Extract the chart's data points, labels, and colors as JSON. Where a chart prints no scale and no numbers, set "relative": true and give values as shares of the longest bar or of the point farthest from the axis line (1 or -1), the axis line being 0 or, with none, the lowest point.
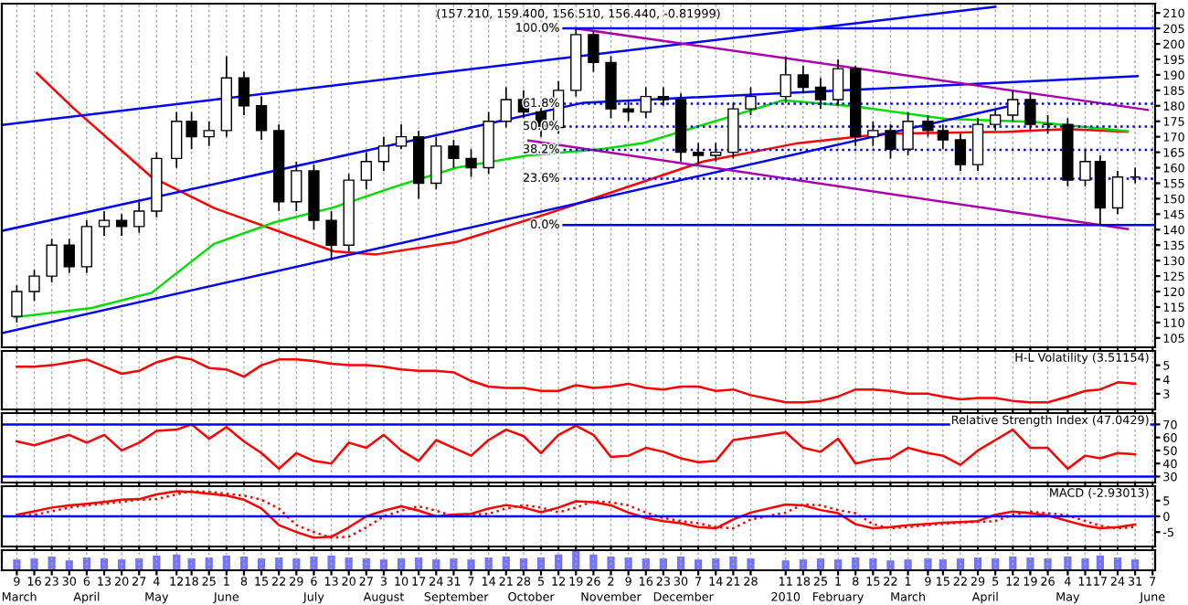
{
  "chart_data": [
    {
      "type": "candlestick",
      "title": "(157.210, 159.400, 156.510, 156.440, -0.81999)",
      "color": "#000000",
      "xlim": [
        "2009-03-03",
        "2010-06-08"
      ],
      "ylim": [
        102,
        213
      ],
      "yticks": [
        105,
        110,
        115,
        120,
        125,
        130,
        135,
        140,
        145,
        150,
        155,
        160,
        165,
        170,
        175,
        180,
        185,
        190,
        195,
        200,
        205,
        210
      ],
      "grid": "x",
      "tick_labels": "y",
      "legend": false,
      "x": [
        "2009-03-09",
        "2009-03-16",
        "2009-03-23",
        "2009-03-30",
        "2009-04-06",
        "2009-04-13",
        "2009-04-20",
        "2009-04-27",
        "2009-05-04",
        "2009-05-12",
        "2009-05-18",
        "2009-05-25",
        "2009-06-01",
        "2009-06-08",
        "2009-06-15",
        "2009-06-22",
        "2009-06-29",
        "2009-07-06",
        "2009-07-13",
        "2009-07-20",
        "2009-07-27",
        "2009-08-03",
        "2009-08-10",
        "2009-08-17",
        "2009-08-24",
        "2009-08-31",
        "2009-09-07",
        "2009-09-14",
        "2009-09-21",
        "2009-09-28",
        "2009-10-05",
        "2009-10-12",
        "2009-10-19",
        "2009-10-26",
        "2009-11-02",
        "2009-11-09",
        "2009-11-16",
        "2009-11-23",
        "2009-11-30",
        "2009-12-07",
        "2009-12-14",
        "2009-12-21",
        "2009-12-28",
        "2010-01-11",
        "2010-01-18",
        "2010-01-25",
        "2010-02-01",
        "2010-02-08",
        "2010-02-15",
        "2010-02-22",
        "2010-03-01",
        "2010-03-09",
        "2010-03-15",
        "2010-03-22",
        "2010-03-29",
        "2010-04-05",
        "2010-04-12",
        "2010-04-19",
        "2010-04-26",
        "2010-05-04",
        "2010-05-11",
        "2010-05-17",
        "2010-05-24",
        "2010-05-31"
      ],
      "ohlc": [
        [
          112,
          122,
          110,
          120
        ],
        [
          120,
          127,
          117,
          125
        ],
        [
          125,
          137,
          123,
          135
        ],
        [
          135,
          137,
          126,
          128
        ],
        [
          128,
          143,
          126,
          141
        ],
        [
          141,
          146,
          138,
          143
        ],
        [
          143,
          145,
          138,
          141
        ],
        [
          141,
          149,
          139,
          146
        ],
        [
          146,
          165,
          144,
          163
        ],
        [
          163,
          178,
          160,
          175
        ],
        [
          175,
          178,
          166,
          170
        ],
        [
          170,
          175,
          167,
          172
        ],
        [
          172,
          196,
          170,
          189
        ],
        [
          189,
          191,
          177,
          180
        ],
        [
          180,
          183,
          169,
          172
        ],
        [
          172,
          174,
          146,
          149
        ],
        [
          149,
          162,
          146,
          159
        ],
        [
          159,
          161,
          140,
          143
        ],
        [
          143,
          146,
          130,
          135
        ],
        [
          135,
          158,
          133,
          156
        ],
        [
          156,
          165,
          153,
          162
        ],
        [
          162,
          170,
          159,
          167
        ],
        [
          167,
          174,
          166,
          170
        ],
        [
          170,
          172,
          150,
          155
        ],
        [
          155,
          170,
          153,
          167
        ],
        [
          167,
          169,
          160,
          163
        ],
        [
          163,
          166,
          157,
          160
        ],
        [
          160,
          178,
          158,
          175
        ],
        [
          175,
          186,
          173,
          182
        ],
        [
          182,
          185,
          176,
          178
        ],
        [
          178,
          180,
          170,
          173
        ],
        [
          173,
          188,
          171,
          185
        ],
        [
          185,
          205,
          183,
          203
        ],
        [
          203,
          204,
          191,
          194
        ],
        [
          194,
          196,
          176,
          179
        ],
        [
          179,
          182,
          175,
          178
        ],
        [
          178,
          186,
          176,
          183
        ],
        [
          183,
          186,
          180,
          182
        ],
        [
          182,
          184,
          162,
          165
        ],
        [
          165,
          168,
          161,
          164
        ],
        [
          164,
          168,
          162,
          165
        ],
        [
          165,
          181,
          163,
          179
        ],
        [
          179,
          186,
          177,
          183
        ],
        [
          183,
          196,
          181,
          190
        ],
        [
          190,
          193,
          184,
          186
        ],
        [
          186,
          189,
          179,
          182
        ],
        [
          182,
          195,
          180,
          192
        ],
        [
          192,
          193,
          167,
          170
        ],
        [
          170,
          175,
          167,
          172
        ],
        [
          172,
          174,
          163,
          166
        ],
        [
          166,
          178,
          164,
          175
        ],
        [
          175,
          177,
          170,
          172
        ],
        [
          172,
          174,
          166,
          169
        ],
        [
          169,
          171,
          159,
          161
        ],
        [
          161,
          176,
          159,
          174
        ],
        [
          174,
          179,
          172,
          177
        ],
        [
          177,
          185,
          175,
          182
        ],
        [
          182,
          184,
          172,
          174
        ],
        [
          174,
          177,
          171,
          174
        ],
        [
          174,
          176,
          154,
          156
        ],
        [
          156,
          166,
          154,
          162
        ],
        [
          162,
          164,
          141.5,
          147
        ],
        [
          147,
          159,
          145,
          157
        ],
        [
          157,
          160,
          155,
          157
        ]
      ],
      "series": [
        {
          "type": "line",
          "color": "#ff0000",
          "x": [
            "2009-03-17",
            "2009-04-01",
            "2009-05-02",
            "2009-05-27",
            "2009-06-20",
            "2009-07-14",
            "2009-07-31",
            "2009-09-01",
            "2009-10-07",
            "2009-10-22",
            "2009-12-09",
            "2010-01-15",
            "2010-02-20",
            "2010-04-09",
            "2010-05-04",
            "2010-05-28"
          ],
          "values": [
            190.6,
            179,
            157,
            147,
            140,
            133,
            132,
            136,
            145,
            149,
            162,
            167.8,
            171,
            171.6,
            172.5,
            171.6
          ]
        },
        {
          "type": "line",
          "color": "#00dd00",
          "x": [
            "2009-03-08",
            "2009-04-08",
            "2009-05-02",
            "2009-05-27",
            "2009-06-20",
            "2009-07-14",
            "2009-08-08",
            "2009-09-01",
            "2009-09-30",
            "2009-10-29",
            "2009-11-15",
            "2009-12-21",
            "2010-01-10",
            "2010-02-08",
            "2010-03-16",
            "2010-04-21",
            "2010-05-28"
          ],
          "values": [
            111.7,
            114.7,
            119.6,
            135.4,
            142.3,
            147.2,
            154,
            160,
            164,
            166,
            168,
            176.8,
            181.8,
            179.8,
            175.8,
            174.8,
            171.8
          ]
        },
        {
          "type": "line",
          "color": "#0000ff",
          "x": [
            "2009-03-03",
            "2010-04-05"
          ],
          "values": [
            173.8,
            212
          ]
        },
        {
          "type": "line",
          "color": "#0000ff",
          "x": [
            "2009-03-03",
            "2009-10-22",
            "2010-06-01"
          ],
          "values": [
            139.6,
            181,
            189.6
          ]
        },
        {
          "type": "line",
          "color": "#0000ff",
          "x": [
            "2009-03-03",
            "2010-04-10"
          ],
          "values": [
            106.6,
            179.8
          ]
        },
        {
          "type": "line",
          "color": "#aa00aa",
          "x": [
            "2009-10-19",
            "2010-06-05"
          ],
          "values": [
            205,
            178.7
          ]
        },
        {
          "type": "line",
          "color": "#aa00aa",
          "x": [
            "2009-09-30",
            "2010-05-28"
          ],
          "values": [
            168.8,
            140.2
          ]
        },
        {
          "type": "line",
          "name": "100.0%",
          "color": "#0000ff",
          "line_style": "solid",
          "x": [
            "2009-10-14",
            "2010-06-08"
          ],
          "values": [
            205,
            205
          ]
        },
        {
          "type": "line",
          "name": "61.8%",
          "color": "#0000ff",
          "line_style": "dotted",
          "x": [
            "2009-10-14",
            "2010-06-08"
          ],
          "values": [
            180.7,
            180.7
          ]
        },
        {
          "type": "line",
          "name": "50.0%",
          "color": "#0000ff",
          "line_style": "dotted",
          "x": [
            "2009-10-14",
            "2010-06-08"
          ],
          "values": [
            173.3,
            173.3
          ]
        },
        {
          "type": "line",
          "name": "38.2%",
          "color": "#0000ff",
          "line_style": "dotted",
          "x": [
            "2009-10-14",
            "2010-06-08"
          ],
          "values": [
            165.8,
            165.8
          ]
        },
        {
          "type": "line",
          "name": "23.6%",
          "color": "#0000ff",
          "line_style": "dotted",
          "x": [
            "2009-10-14",
            "2010-06-08"
          ],
          "values": [
            156.5,
            156.5
          ]
        },
        {
          "type": "line",
          "name": "0.0%",
          "color": "#0000ff",
          "line_style": "solid",
          "x": [
            "2009-10-14",
            "2010-06-08"
          ],
          "values": [
            141.5,
            141.5
          ]
        }
      ]
    },
    {
      "type": "line",
      "title": "H-L Volatility (3.51154)",
      "xlim": [
        "2009-03-03",
        "2010-06-08"
      ],
      "ylim": [
        1.9,
        6
      ],
      "yticks": [
        3,
        4,
        5
      ],
      "grid": "x",
      "tick_labels": "y",
      "x": [
        "2009-03-09",
        "2009-03-16",
        "2009-03-23",
        "2009-03-30",
        "2009-04-06",
        "2009-04-13",
        "2009-04-20",
        "2009-04-27",
        "2009-05-04",
        "2009-05-12",
        "2009-05-18",
        "2009-05-25",
        "2009-06-01",
        "2009-06-08",
        "2009-06-15",
        "2009-06-22",
        "2009-06-29",
        "2009-07-06",
        "2009-07-13",
        "2009-07-20",
        "2009-07-27",
        "2009-08-03",
        "2009-08-10",
        "2009-08-17",
        "2009-08-24",
        "2009-08-31",
        "2009-09-07",
        "2009-09-14",
        "2009-09-21",
        "2009-09-28",
        "2009-10-05",
        "2009-10-12",
        "2009-10-19",
        "2009-10-26",
        "2009-11-02",
        "2009-11-09",
        "2009-11-16",
        "2009-11-23",
        "2009-11-30",
        "2009-12-07",
        "2009-12-14",
        "2009-12-21",
        "2009-12-28",
        "2010-01-11",
        "2010-01-18",
        "2010-01-25",
        "2010-02-01",
        "2010-02-08",
        "2010-02-15",
        "2010-02-22",
        "2010-03-01",
        "2010-03-09",
        "2010-03-15",
        "2010-03-22",
        "2010-03-29",
        "2010-04-05",
        "2010-04-12",
        "2010-04-19",
        "2010-04-26",
        "2010-05-04",
        "2010-05-11",
        "2010-05-17",
        "2010-05-24",
        "2010-05-31"
      ],
      "series": [
        {
          "color": "#ff0000",
          "values": [
            4.9,
            4.9,
            5.0,
            5.2,
            5.4,
            4.9,
            4.4,
            4.6,
            5.2,
            5.6,
            5.4,
            4.8,
            4.7,
            4.2,
            5.0,
            5.4,
            5.4,
            5.3,
            5.1,
            5.0,
            5.0,
            4.9,
            4.7,
            4.6,
            4.6,
            4.5,
            3.9,
            3.5,
            3.4,
            3.4,
            3.2,
            3.2,
            3.6,
            3.4,
            3.5,
            3.7,
            3.4,
            3.3,
            3.5,
            3.5,
            3.2,
            3.3,
            2.9,
            2.4,
            2.4,
            2.5,
            2.8,
            3.3,
            3.3,
            3.2,
            3.0,
            3.0,
            2.8,
            2.6,
            2.7,
            2.7,
            2.5,
            2.4,
            2.4,
            2.8,
            3.2,
            3.3,
            3.8,
            3.7
          ]
        }
      ]
    },
    {
      "type": "line",
      "title": "Relative Strength Index (47.0429)",
      "xlim": [
        "2009-03-03",
        "2010-06-08"
      ],
      "ylim": [
        25.4,
        78.7
      ],
      "yticks": [
        30,
        40,
        50,
        60,
        70
      ],
      "grid": "x",
      "tick_labels": "y",
      "ref_lines": [
        {
          "axis": "y",
          "value": 30,
          "color": "#0000ff"
        },
        {
          "axis": "y",
          "value": 70,
          "color": "#0000ff"
        }
      ],
      "x": [
        "2009-03-09",
        "2009-03-16",
        "2009-03-23",
        "2009-03-30",
        "2009-04-06",
        "2009-04-13",
        "2009-04-20",
        "2009-04-27",
        "2009-05-04",
        "2009-05-12",
        "2009-05-18",
        "2009-05-25",
        "2009-06-01",
        "2009-06-08",
        "2009-06-15",
        "2009-06-22",
        "2009-06-29",
        "2009-07-06",
        "2009-07-13",
        "2009-07-20",
        "2009-07-27",
        "2009-08-03",
        "2009-08-10",
        "2009-08-17",
        "2009-08-24",
        "2009-08-31",
        "2009-09-07",
        "2009-09-14",
        "2009-09-21",
        "2009-09-28",
        "2009-10-05",
        "2009-10-12",
        "2009-10-19",
        "2009-10-26",
        "2009-11-02",
        "2009-11-09",
        "2009-11-16",
        "2009-11-23",
        "2009-11-30",
        "2009-12-07",
        "2009-12-14",
        "2009-12-21",
        "2009-12-28",
        "2010-01-11",
        "2010-01-18",
        "2010-01-25",
        "2010-02-01",
        "2010-02-08",
        "2010-02-15",
        "2010-02-22",
        "2010-03-01",
        "2010-03-09",
        "2010-03-15",
        "2010-03-22",
        "2010-03-29",
        "2010-04-05",
        "2010-04-12",
        "2010-04-19",
        "2010-04-26",
        "2010-05-04",
        "2010-05-11",
        "2010-05-17",
        "2010-05-24",
        "2010-05-31"
      ],
      "series": [
        {
          "color": "#ff0000",
          "values": [
            57,
            54,
            58,
            62,
            56,
            62,
            50,
            56,
            65,
            66,
            70,
            59,
            68,
            57,
            48,
            36,
            48,
            42,
            40,
            56,
            52,
            62,
            50,
            42,
            58,
            52,
            46,
            58,
            66,
            61,
            48,
            62,
            69,
            62,
            45,
            46,
            52,
            49,
            44,
            41,
            42,
            58,
            60,
            64,
            52,
            49,
            59,
            40,
            43,
            44,
            52,
            48,
            46,
            39,
            50,
            58,
            66,
            52,
            52,
            36,
            46,
            44,
            48,
            47
          ]
        }
      ]
    },
    {
      "type": "line",
      "title": "MACD (-2.93013)",
      "xlim": [
        "2009-03-03",
        "2010-06-08"
      ],
      "ylim": [
        -9.6,
        9.6
      ],
      "yticks": [
        -5,
        0,
        5
      ],
      "grid": "x",
      "tick_labels": "y",
      "ref_lines": [
        {
          "axis": "y",
          "value": 0,
          "color": "#0000ff"
        }
      ],
      "x": [
        "2009-03-09",
        "2009-03-16",
        "2009-03-23",
        "2009-03-30",
        "2009-04-06",
        "2009-04-13",
        "2009-04-20",
        "2009-04-27",
        "2009-05-04",
        "2009-05-12",
        "2009-05-18",
        "2009-05-25",
        "2009-06-01",
        "2009-06-08",
        "2009-06-15",
        "2009-06-22",
        "2009-06-29",
        "2009-07-06",
        "2009-07-13",
        "2009-07-20",
        "2009-07-27",
        "2009-08-03",
        "2009-08-10",
        "2009-08-17",
        "2009-08-24",
        "2009-08-31",
        "2009-09-07",
        "2009-09-14",
        "2009-09-21",
        "2009-09-28",
        "2009-10-05",
        "2009-10-12",
        "2009-10-19",
        "2009-10-26",
        "2009-11-02",
        "2009-11-09",
        "2009-11-16",
        "2009-11-23",
        "2009-11-30",
        "2009-12-07",
        "2009-12-14",
        "2009-12-21",
        "2009-12-28",
        "2010-01-11",
        "2010-01-18",
        "2010-01-25",
        "2010-02-01",
        "2010-02-08",
        "2010-02-15",
        "2010-02-22",
        "2010-03-01",
        "2010-03-09",
        "2010-03-15",
        "2010-03-22",
        "2010-03-29",
        "2010-04-05",
        "2010-04-12",
        "2010-04-19",
        "2010-04-26",
        "2010-05-04",
        "2010-05-11",
        "2010-05-17",
        "2010-05-24",
        "2010-05-31"
      ],
      "series": [
        {
          "color": "#ff0000",
          "line_style": "solid",
          "values": [
            0.5,
            1.6,
            2.8,
            3.5,
            4.0,
            4.6,
            5.3,
            5.5,
            7.0,
            8.0,
            7.8,
            7.2,
            6.6,
            5.3,
            2.5,
            -2.8,
            -5.0,
            -6.8,
            -6.5,
            -3.5,
            0,
            1.8,
            3.2,
            1.8,
            0,
            0.6,
            0.8,
            2.5,
            3.6,
            2.8,
            1.3,
            2.8,
            4.8,
            4.5,
            3.5,
            1.2,
            -0.5,
            -1.5,
            -2.2,
            -3.4,
            -3.8,
            -1.0,
            1.2,
            3.8,
            3.5,
            2.0,
            1.0,
            -2.5,
            -3.8,
            -3.4,
            -2.8,
            -2.4,
            -2.0,
            -1.8,
            -1.5,
            0.5,
            1.5,
            1.0,
            0.3,
            -1.5,
            -3.0,
            -3.8,
            -3.4,
            -2.6
          ]
        },
        {
          "color": "#ff0000",
          "line_style": "dotted",
          "values": [
            0.2,
            0.5,
            1.6,
            2.8,
            3.5,
            4.0,
            4.6,
            5.3,
            5.5,
            7.0,
            8.0,
            7.8,
            7.2,
            6.6,
            5.3,
            2.5,
            -2.8,
            -5.0,
            -6.8,
            -6.5,
            -3.5,
            0,
            1.8,
            3.2,
            1.8,
            0,
            0.6,
            0.8,
            2.5,
            3.6,
            2.8,
            1.3,
            2.8,
            4.8,
            4.5,
            3.5,
            1.2,
            -0.5,
            -1.5,
            -2.2,
            -3.4,
            -3.8,
            -1.0,
            1.2,
            3.8,
            3.5,
            2.0,
            1.0,
            -2.5,
            -3.8,
            -3.4,
            -2.8,
            -2.4,
            -2.0,
            -1.8,
            -1.5,
            0.5,
            1.5,
            1.0,
            0.3,
            -1.5,
            -3.0,
            -3.8,
            -3.4
          ]
        }
      ]
    },
    {
      "type": "bar",
      "relative": true,
      "color": "#7373ff",
      "xlim": [
        "2009-03-03",
        "2010-06-08"
      ],
      "grid": "x",
      "tick_labels": "x",
      "x": [
        "2009-03-09",
        "2009-03-16",
        "2009-03-23",
        "2009-03-30",
        "2009-04-06",
        "2009-04-13",
        "2009-04-20",
        "2009-04-27",
        "2009-05-04",
        "2009-05-12",
        "2009-05-18",
        "2009-05-25",
        "2009-06-01",
        "2009-06-08",
        "2009-06-15",
        "2009-06-22",
        "2009-06-29",
        "2009-07-06",
        "2009-07-13",
        "2009-07-20",
        "2009-07-27",
        "2009-08-03",
        "2009-08-10",
        "2009-08-17",
        "2009-08-24",
        "2009-08-31",
        "2009-09-07",
        "2009-09-14",
        "2009-09-21",
        "2009-09-28",
        "2009-10-05",
        "2009-10-12",
        "2009-10-19",
        "2009-10-26",
        "2009-11-02",
        "2009-11-09",
        "2009-11-16",
        "2009-11-23",
        "2009-11-30",
        "2009-12-07",
        "2009-12-14",
        "2009-12-21",
        "2009-12-28",
        "2010-01-11",
        "2010-01-18",
        "2010-01-25",
        "2010-02-01",
        "2010-02-08",
        "2010-02-15",
        "2010-02-22",
        "2010-03-01",
        "2010-03-09",
        "2010-03-15",
        "2010-03-22",
        "2010-03-29",
        "2010-04-05",
        "2010-04-12",
        "2010-04-19",
        "2010-04-26",
        "2010-05-04",
        "2010-05-11",
        "2010-05-17",
        "2010-05-24",
        "2010-05-31"
      ],
      "values": [
        0.55,
        0.6,
        0.7,
        0.5,
        0.65,
        0.6,
        0.55,
        0.6,
        0.75,
        0.8,
        0.6,
        0.65,
        0.75,
        0.7,
        0.6,
        0.65,
        0.6,
        0.7,
        0.75,
        0.65,
        0.6,
        0.55,
        0.6,
        0.65,
        0.55,
        0.6,
        0.55,
        0.65,
        0.7,
        0.6,
        0.65,
        0.8,
        1.0,
        0.8,
        0.7,
        0.65,
        0.6,
        0.6,
        0.7,
        0.55,
        0.6,
        0.7,
        0.6,
        0.5,
        0.55,
        0.6,
        0.55,
        0.65,
        0.6,
        0.5,
        0.55,
        0.6,
        0.55,
        0.6,
        0.65,
        0.6,
        0.7,
        0.65,
        0.6,
        0.7,
        0.6,
        0.75,
        0.65,
        0.55
      ],
      "xticks": [
        {
          "value": "2009-03-09",
          "label": "9"
        },
        {
          "value": "2009-03-16",
          "label": "16"
        },
        {
          "value": "2009-03-23",
          "label": "23"
        },
        {
          "value": "2009-03-30",
          "label": "30"
        },
        {
          "value": "2009-04-06",
          "label": "6"
        },
        {
          "value": "2009-04-13",
          "label": "13"
        },
        {
          "value": "2009-04-20",
          "label": "20"
        },
        {
          "value": "2009-04-27",
          "label": "27"
        },
        {
          "value": "2009-05-04",
          "label": "4"
        },
        {
          "value": "2009-05-12",
          "label": "12"
        },
        {
          "value": "2009-05-18",
          "label": "18"
        },
        {
          "value": "2009-05-25",
          "label": "25"
        },
        {
          "value": "2009-06-01",
          "label": "1"
        },
        {
          "value": "2009-06-08",
          "label": "8"
        },
        {
          "value": "2009-06-15",
          "label": "15"
        },
        {
          "value": "2009-06-22",
          "label": "22"
        },
        {
          "value": "2009-06-29",
          "label": "29"
        },
        {
          "value": "2009-07-06",
          "label": "6"
        },
        {
          "value": "2009-07-13",
          "label": "13"
        },
        {
          "value": "2009-07-20",
          "label": "20"
        },
        {
          "value": "2009-07-27",
          "label": "27"
        },
        {
          "value": "2009-08-03",
          "label": "3"
        },
        {
          "value": "2009-08-10",
          "label": "10"
        },
        {
          "value": "2009-08-17",
          "label": "17"
        },
        {
          "value": "2009-08-24",
          "label": "24"
        },
        {
          "value": "2009-08-31",
          "label": "31"
        },
        {
          "value": "2009-09-07",
          "label": "7"
        },
        {
          "value": "2009-09-14",
          "label": "14"
        },
        {
          "value": "2009-09-21",
          "label": "21"
        },
        {
          "value": "2009-09-28",
          "label": "28"
        },
        {
          "value": "2009-10-05",
          "label": "5"
        },
        {
          "value": "2009-10-12",
          "label": "12"
        },
        {
          "value": "2009-10-19",
          "label": "19"
        },
        {
          "value": "2009-10-26",
          "label": "26"
        },
        {
          "value": "2009-11-02",
          "label": "2"
        },
        {
          "value": "2009-11-09",
          "label": "9"
        },
        {
          "value": "2009-11-16",
          "label": "16"
        },
        {
          "value": "2009-11-23",
          "label": "23"
        },
        {
          "value": "2009-11-30",
          "label": "30"
        },
        {
          "value": "2009-12-07",
          "label": "7"
        },
        {
          "value": "2009-12-14",
          "label": "14"
        },
        {
          "value": "2009-12-21",
          "label": "21"
        },
        {
          "value": "2009-12-28",
          "label": "28"
        },
        {
          "value": "2010-01-11",
          "label": "11"
        },
        {
          "value": "2010-01-18",
          "label": "18"
        },
        {
          "value": "2010-01-25",
          "label": "25"
        },
        {
          "value": "2010-02-01",
          "label": "1"
        },
        {
          "value": "2010-02-08",
          "label": "8"
        },
        {
          "value": "2010-02-15",
          "label": "15"
        },
        {
          "value": "2010-02-22",
          "label": "22"
        },
        {
          "value": "2010-03-01",
          "label": "1"
        },
        {
          "value": "2010-03-09",
          "label": "9"
        },
        {
          "value": "2010-03-15",
          "label": "15"
        },
        {
          "value": "2010-03-22",
          "label": "22"
        },
        {
          "value": "2010-03-29",
          "label": "29"
        },
        {
          "value": "2010-04-05",
          "label": "5"
        },
        {
          "value": "2010-04-12",
          "label": "12"
        },
        {
          "value": "2010-04-19",
          "label": "19"
        },
        {
          "value": "2010-04-26",
          "label": "26"
        },
        {
          "value": "2010-05-04",
          "label": "4"
        },
        {
          "value": "2010-05-11",
          "label": "11"
        },
        {
          "value": "2010-05-17",
          "label": "17"
        },
        {
          "value": "2010-05-24",
          "label": "24"
        },
        {
          "value": "2010-05-31",
          "label": "31"
        },
        {
          "value": "2010-06-07",
          "label": "7"
        }
      ],
      "x2lim": [
        "2009-03-03",
        "2010-06-08"
      ],
      "x2ticks": [
        {
          "value": "2009-03-10",
          "label": "March"
        },
        {
          "value": "2009-04-06",
          "label": "April"
        },
        {
          "value": "2009-05-04",
          "label": "May"
        },
        {
          "value": "2009-06-01",
          "label": "June"
        },
        {
          "value": "2009-07-06",
          "label": "July"
        },
        {
          "value": "2009-08-03",
          "label": "August"
        },
        {
          "value": "2009-09-01",
          "label": "September"
        },
        {
          "value": "2009-10-01",
          "label": "October"
        },
        {
          "value": "2009-11-02",
          "label": "November"
        },
        {
          "value": "2009-12-01",
          "label": "December"
        },
        {
          "value": "2010-01-11",
          "label": "2010"
        },
        {
          "value": "2010-02-01",
          "label": "February"
        },
        {
          "value": "2010-03-01",
          "label": "March"
        },
        {
          "value": "2010-04-01",
          "label": "April"
        },
        {
          "value": "2010-05-04",
          "label": "May"
        },
        {
          "value": "2010-06-07",
          "label": "June"
        }
      ]
    }
  ]
}
